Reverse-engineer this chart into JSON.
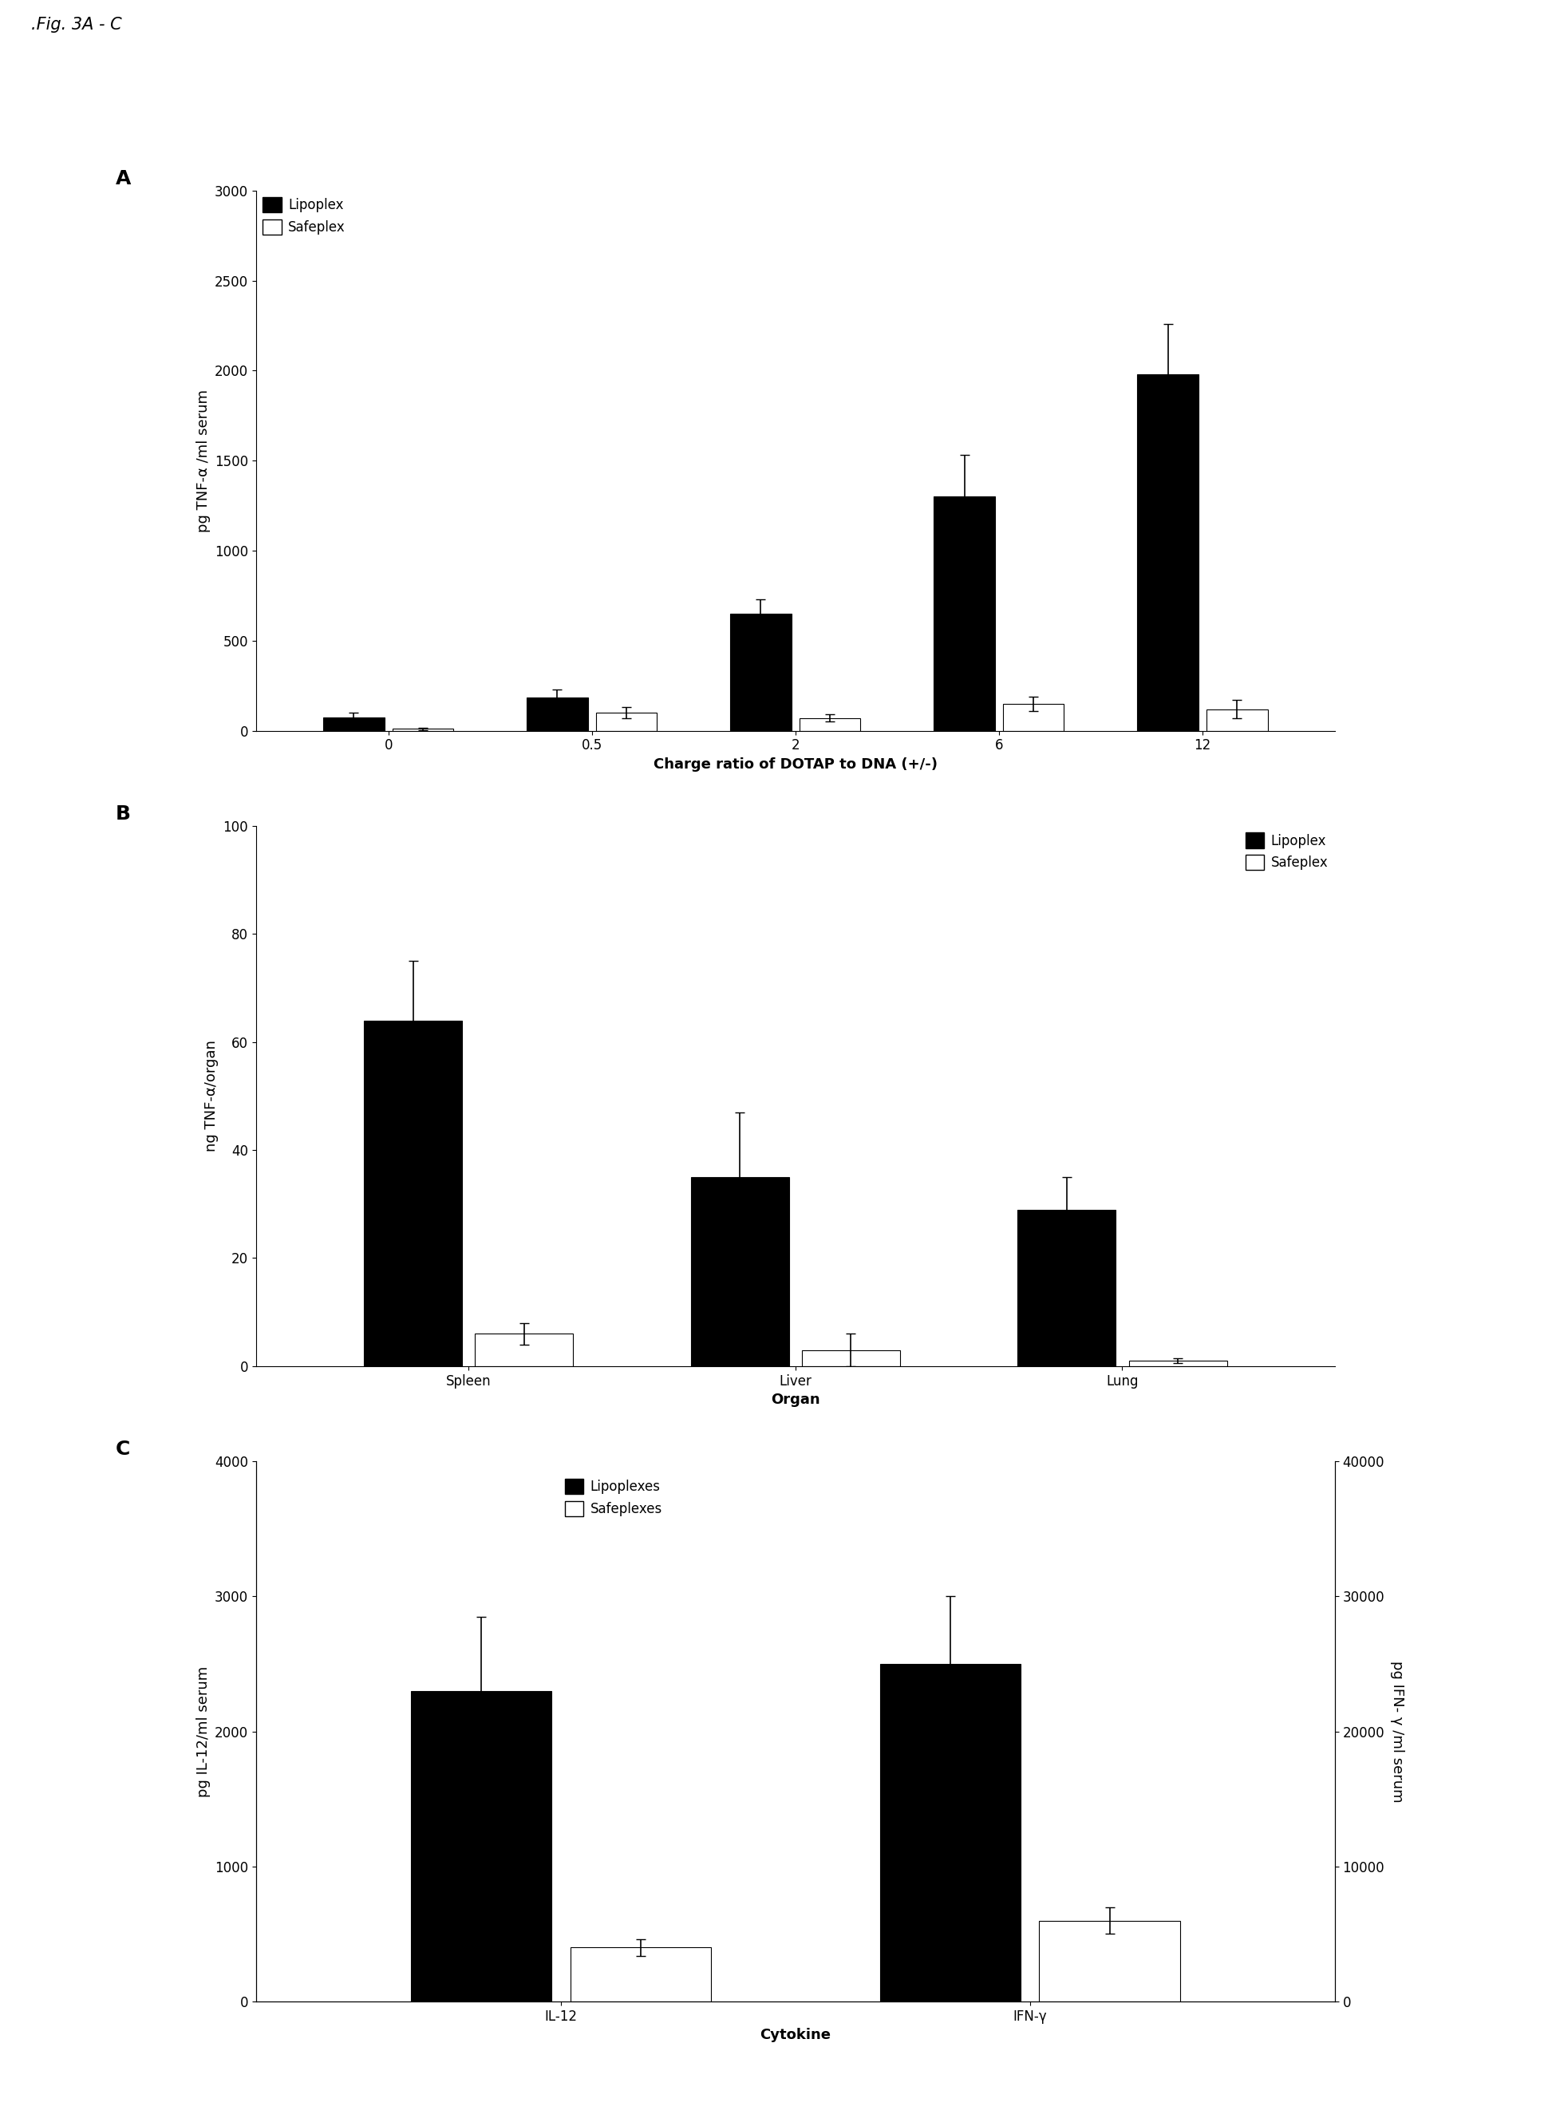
{
  "fig_label": ".Fig. 3A - C",
  "panelA": {
    "label": "A",
    "categories": [
      "0",
      "0.5",
      "2",
      "6",
      "12"
    ],
    "lipoplex_values": [
      75,
      185,
      650,
      1300,
      1980
    ],
    "lipoplex_errors": [
      25,
      45,
      80,
      230,
      280
    ],
    "safeplex_values": [
      10,
      100,
      70,
      150,
      120
    ],
    "safeplex_errors": [
      5,
      30,
      20,
      40,
      50
    ],
    "ylabel": "pg TNF-α /ml serum",
    "xlabel": "Charge ratio of DOTAP to DNA (+/-)",
    "ylim": [
      0,
      3000
    ],
    "yticks": [
      0,
      500,
      1000,
      1500,
      2000,
      2500,
      3000
    ],
    "legend_labels": [
      "Lipoplex",
      "Safeplex"
    ]
  },
  "panelB": {
    "label": "B",
    "categories": [
      "Spleen",
      "Liver",
      "Lung"
    ],
    "lipoplex_values": [
      64,
      35,
      29
    ],
    "lipoplex_errors": [
      11,
      12,
      6
    ],
    "safeplex_values": [
      6,
      3,
      1
    ],
    "safeplex_errors": [
      2,
      3,
      0.5
    ],
    "ylabel": "ng TNF-α/organ",
    "xlabel": "Organ",
    "ylim": [
      0,
      100
    ],
    "yticks": [
      0,
      20,
      40,
      60,
      80,
      100
    ],
    "legend_labels": [
      "Lipoplex",
      "Safeplex"
    ]
  },
  "panelC": {
    "label": "C",
    "categories": [
      "IL-12",
      "IFN-γ"
    ],
    "lipoplex_values": [
      2300,
      2500
    ],
    "lipoplex_errors": [
      550,
      500
    ],
    "safeplex_il12_value": 400,
    "safeplex_il12_error": 60,
    "safeplex_ifng_value": 600,
    "safeplex_ifng_error": 100,
    "ylabel_left": "pg IL-12/ml serum",
    "ylabel_right": "pg IFN- γ /ml serum",
    "xlabel": "Cytokine",
    "ylim_left": [
      0,
      4000
    ],
    "ylim_right": [
      0,
      40000
    ],
    "yticks_left": [
      0,
      1000,
      2000,
      3000,
      4000
    ],
    "yticks_right": [
      0,
      10000,
      20000,
      30000,
      40000
    ],
    "legend_labels": [
      "Lipoplexes",
      "Safeplexes"
    ]
  },
  "bar_width": 0.3,
  "black_color": "#000000",
  "white_color": "#ffffff",
  "edge_color": "#000000",
  "fontsize_tick": 12,
  "fontsize_axis_label": 13,
  "fontsize_panel_label": 18,
  "fontsize_fig_label": 15
}
